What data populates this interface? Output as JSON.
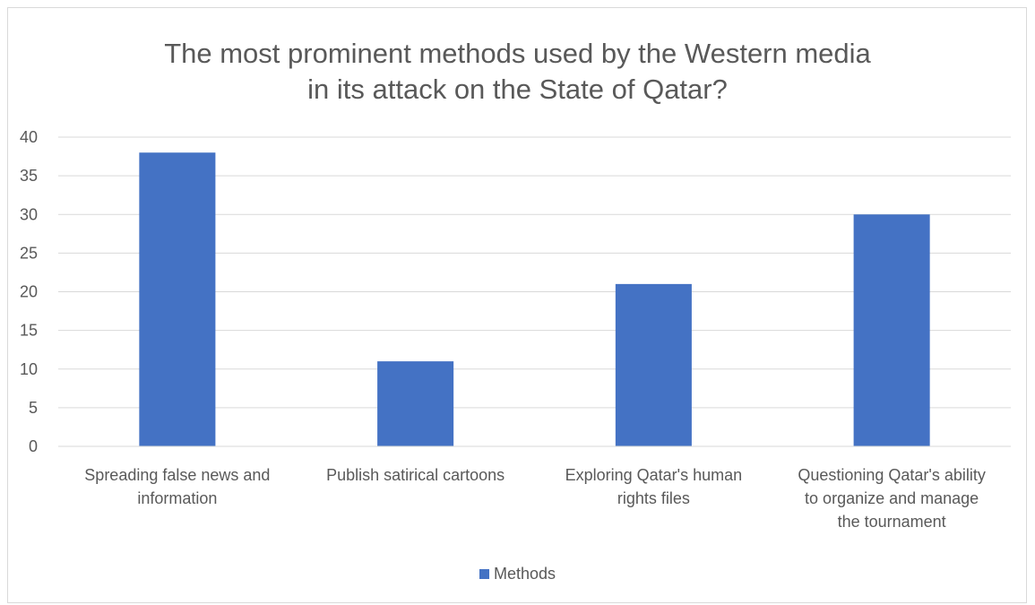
{
  "chart_data": {
    "type": "bar",
    "title_lines": [
      "The most prominent methods used by the Western media",
      "in its attack on the State of Qatar?"
    ],
    "categories": [
      [
        "Spreading false news and",
        "information"
      ],
      [
        "Publish satirical cartoons"
      ],
      [
        "Exploring Qatar's human",
        "rights files"
      ],
      [
        "Questioning Qatar's ability",
        "to organize and manage",
        "the tournament"
      ]
    ],
    "series": [
      {
        "name": "Methods",
        "values": [
          38,
          11,
          21,
          30
        ],
        "color": "#4472c4"
      }
    ],
    "ylim": [
      0,
      40
    ],
    "yticks": [
      "0",
      "5",
      "10",
      "15",
      "20",
      "25",
      "30",
      "35",
      "40"
    ],
    "grid": true,
    "legend_position": "bottom"
  }
}
